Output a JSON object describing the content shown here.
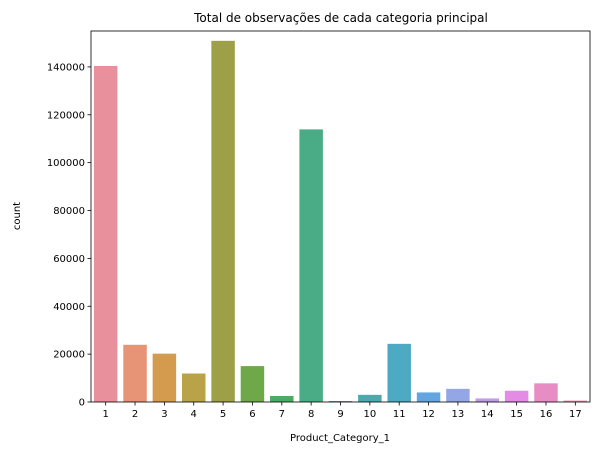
{
  "chart_data": {
    "type": "bar",
    "title": "Total de observações de cada categoria principal",
    "xlabel": "Product_Category_1",
    "ylabel": "count",
    "categories": [
      "1",
      "2",
      "3",
      "4",
      "5",
      "6",
      "7",
      "8",
      "9",
      "10",
      "11",
      "12",
      "13",
      "14",
      "15",
      "16",
      "17"
    ],
    "values": [
      140400,
      23900,
      20200,
      11900,
      150900,
      15000,
      2500,
      113900,
      400,
      3000,
      24300,
      4000,
      5500,
      1500,
      4700,
      7800,
      600
    ],
    "colors": [
      "#e8909c",
      "#e79375",
      "#d49a4e",
      "#b9a247",
      "#9ea048",
      "#6fa848",
      "#4cab63",
      "#49ac87",
      "#4aab9c",
      "#4aaaad",
      "#4ea9c3",
      "#62a5df",
      "#95a6e6",
      "#c19de6",
      "#e38be5",
      "#e88dc4",
      "#e98fab"
    ],
    "ylim": [
      0,
      155000
    ],
    "yticks": [
      0,
      20000,
      40000,
      60000,
      80000,
      100000,
      120000,
      140000
    ],
    "ytick_labels": [
      "0",
      "20000",
      "40000",
      "60000",
      "80000",
      "100000",
      "120000",
      "140000"
    ],
    "grid": false,
    "legend": "none"
  }
}
